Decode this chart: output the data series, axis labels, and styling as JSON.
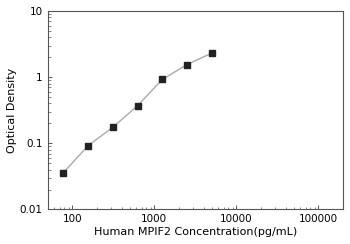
{
  "x_data": [
    78,
    156,
    313,
    625,
    1250,
    2500,
    5000
  ],
  "y_data": [
    0.036,
    0.092,
    0.175,
    0.37,
    0.92,
    1.55,
    2.3
  ],
  "xlabel": "Human MPIF2 Concentration(pg/mL)",
  "ylabel": "Optical Density",
  "xlim": [
    50,
    200000
  ],
  "ylim": [
    0.01,
    10
  ],
  "xticks": [
    100,
    1000,
    10000,
    100000
  ],
  "xtick_labels": [
    "100",
    "1000",
    "10000",
    "100000"
  ],
  "yticks": [
    0.01,
    0.1,
    1,
    10
  ],
  "ytick_labels": [
    "0.01",
    "0.1",
    "1",
    "10"
  ],
  "line_color": "#aaaaaa",
  "marker_color": "#222222",
  "marker_style": "s",
  "marker_size": 4.5,
  "line_width": 1.0,
  "bg_color": "#ffffff",
  "font_size_label": 8,
  "font_size_tick": 7.5,
  "spine_color": "#555555",
  "spine_linewidth": 0.8
}
